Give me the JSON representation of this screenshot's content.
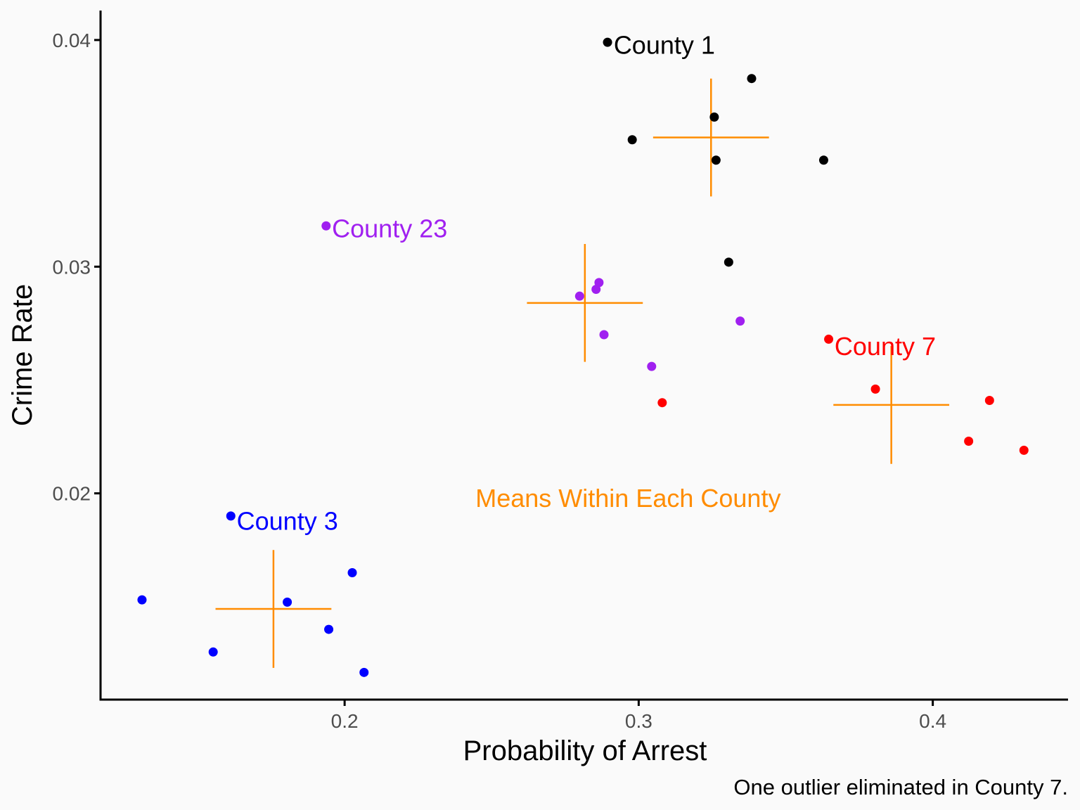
{
  "chart_data": {
    "type": "scatter",
    "title": "",
    "xlabel": "Probability of Arrest",
    "ylabel": "Crime Rate",
    "caption": "One outlier eliminated in County 7.",
    "xlim": [
      0.117,
      0.446
    ],
    "ylim": [
      0.0109,
      0.0413
    ],
    "x_ticks": [
      {
        "value": 0.2,
        "label": "0.2"
      },
      {
        "value": 0.3,
        "label": "0.3"
      },
      {
        "value": 0.4,
        "label": "0.4"
      }
    ],
    "y_ticks": [
      {
        "value": 0.02,
        "label": "0.02"
      },
      {
        "value": 0.03,
        "label": "0.03"
      },
      {
        "value": 0.04,
        "label": "0.04"
      }
    ],
    "grid": false,
    "annotation": {
      "text": "Means Within Each County",
      "x": 0.2445,
      "y": 0.0198,
      "color": "#ff8c00"
    },
    "series": [
      {
        "name": "County 1",
        "color": "#000000",
        "label": {
          "text": "County 1",
          "x": 0.2915,
          "y": 0.0398
        },
        "points": [
          {
            "x": 0.2894,
            "y": 0.0399
          },
          {
            "x": 0.3384,
            "y": 0.0383
          },
          {
            "x": 0.3257,
            "y": 0.0366
          },
          {
            "x": 0.2978,
            "y": 0.0356
          },
          {
            "x": 0.3263,
            "y": 0.0347
          },
          {
            "x": 0.3629,
            "y": 0.0347
          },
          {
            "x": 0.3306,
            "y": 0.0302
          }
        ],
        "mean": {
          "x": 0.3246,
          "y": 0.0357
        }
      },
      {
        "name": "County 23",
        "color": "#a020f0",
        "label": {
          "text": "County 23",
          "x": 0.1957,
          "y": 0.0317
        },
        "points": [
          {
            "x": 0.1937,
            "y": 0.0318
          },
          {
            "x": 0.2865,
            "y": 0.0293
          },
          {
            "x": 0.2855,
            "y": 0.029
          },
          {
            "x": 0.2799,
            "y": 0.0287
          },
          {
            "x": 0.2882,
            "y": 0.027
          },
          {
            "x": 0.3345,
            "y": 0.0276
          },
          {
            "x": 0.3044,
            "y": 0.0256
          }
        ],
        "mean": {
          "x": 0.2817,
          "y": 0.0284
        }
      },
      {
        "name": "County 7",
        "color": "#ff0000",
        "label": {
          "text": "County 7",
          "x": 0.3666,
          "y": 0.0265
        },
        "points": [
          {
            "x": 0.3646,
            "y": 0.0268
          },
          {
            "x": 0.3805,
            "y": 0.0246
          },
          {
            "x": 0.308,
            "y": 0.024
          },
          {
            "x": 0.4193,
            "y": 0.0241
          },
          {
            "x": 0.4122,
            "y": 0.0223
          },
          {
            "x": 0.431,
            "y": 0.0219
          }
        ],
        "mean": {
          "x": 0.3859,
          "y": 0.0239
        }
      },
      {
        "name": "County 3",
        "color": "#0000ff",
        "label": {
          "text": "County 3",
          "x": 0.1633,
          "y": 0.0188
        },
        "points": [
          {
            "x": 0.1613,
            "y": 0.019
          },
          {
            "x": 0.2026,
            "y": 0.0165
          },
          {
            "x": 0.1311,
            "y": 0.0153
          },
          {
            "x": 0.1805,
            "y": 0.0152
          },
          {
            "x": 0.1946,
            "y": 0.014
          },
          {
            "x": 0.1553,
            "y": 0.013
          },
          {
            "x": 0.2066,
            "y": 0.0121
          }
        ],
        "mean": {
          "x": 0.1758,
          "y": 0.0149
        }
      }
    ],
    "mean_marker_color": "#ff8c00",
    "mean_marker_halfwidth_x": 0.0197,
    "mean_marker_halfwidth_y": 0.0026
  }
}
